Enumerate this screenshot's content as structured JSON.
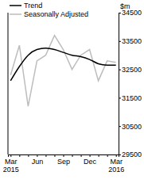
{
  "chart_data": {
    "type": "line",
    "y_label": "$m",
    "categories": [
      "Mar 2015",
      null,
      null,
      "Jun",
      null,
      null,
      "Sep",
      null,
      null,
      "Dec",
      null,
      null,
      "Mar 2016"
    ],
    "series": [
      {
        "name": "Trend",
        "color": "#000000",
        "values": [
          32100,
          32600,
          33000,
          33200,
          33250,
          33200,
          33100,
          33000,
          32950,
          32850,
          32700,
          32650,
          32650
        ]
      },
      {
        "name": "Seasonally Adjusted",
        "color": "#bdbdbd",
        "values": [
          32300,
          33350,
          31200,
          32800,
          33000,
          33700,
          33200,
          32500,
          33000,
          33200,
          32100,
          32800,
          32750
        ]
      }
    ],
    "ylim": [
      29500,
      34500
    ],
    "yticks": [
      29500,
      30500,
      31500,
      32500,
      33500,
      34500
    ],
    "grid": false,
    "legend": "top-left"
  }
}
